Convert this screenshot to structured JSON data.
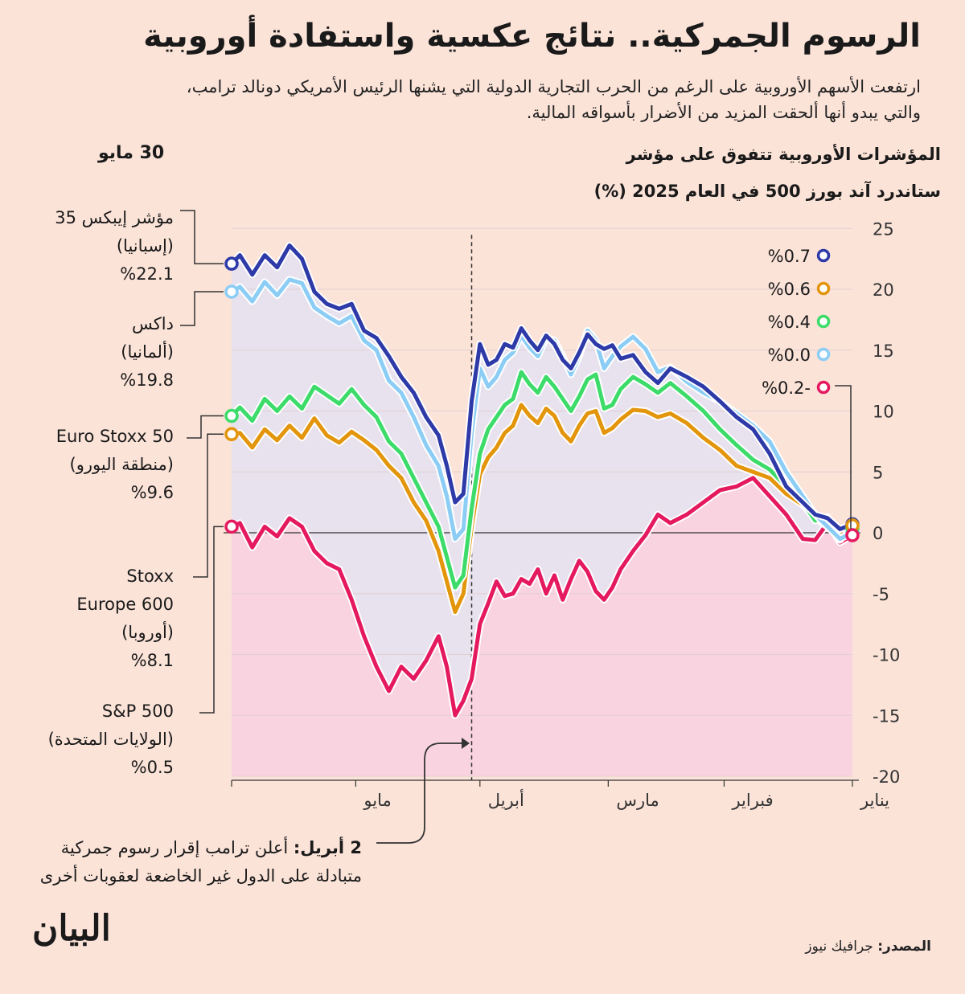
{
  "header": {
    "title": "الرسوم الجمركية.. نتائج عكسية واستفادة أوروبية",
    "subtitle_line1": "ارتفعت الأسهم الأوروبية على الرغم من الحرب التجارية الدولية التي يشنها الرئيس الأمريكي دونالد ترامب،",
    "subtitle_line2": "والتي يبدو أنها ألحقت المزيد من الأضرار بأسواقه المالية."
  },
  "chart_heading": {
    "line1": "المؤشرات الأوروبية تتفوق على مؤشر",
    "line2": "ستاندرد آند بورز 500 في العام 2025 (%)"
  },
  "end_date_label": "30 مايو",
  "annotation": {
    "date": "2 أبريل:",
    "text": "أعلن ترامب إقرار رسوم جمركية متبادلة على الدول غير الخاضعة لعقوبات أخرى"
  },
  "footer": {
    "source_label": "المصدر:",
    "source_value": "جرافيك نيوز",
    "logo": "البيان"
  },
  "chart_data": {
    "type": "line",
    "title": "المؤشرات الأوروبية تتفوق على مؤشر ستاندرد آند بورز 500 في العام 2025 (%)",
    "ylabel": "%",
    "ylim": [
      -20,
      25
    ],
    "y_ticks": [
      25,
      20,
      15,
      10,
      5,
      0,
      -5,
      -10,
      -15,
      -20
    ],
    "y_tick_labels": [
      "25",
      "20",
      "15",
      "10",
      "5",
      "0",
      "-5",
      "-10",
      "-15",
      "-20"
    ],
    "x_range_days": [
      0,
      150
    ],
    "x_ticks": [
      {
        "label": "يناير",
        "day": 0
      },
      {
        "label": "فبراير",
        "day": 31
      },
      {
        "label": "مارس",
        "day": 59
      },
      {
        "label": "أبريل",
        "day": 90
      },
      {
        "label": "مايو",
        "day": 120
      }
    ],
    "event_marker": {
      "day": 92,
      "label": "2 أبريل"
    },
    "start_labels": [
      {
        "text": "%0.7",
        "color": "#2e3aa8"
      },
      {
        "text": "%0.6",
        "color": "#e3950c"
      },
      {
        "text": "%0.4",
        "color": "#3ddc6a"
      },
      {
        "text": "%0.0",
        "color": "#8ccdf5"
      },
      {
        "text": "%0.2-",
        "color": "#e5195f"
      }
    ],
    "series": [
      {
        "name": "IBEX 35",
        "label_name": "مؤشر إيبكس 35",
        "label_region": "(إسبانيا)",
        "end_text": "%22.1",
        "color": "#2e3aa8",
        "x": [
          0,
          3,
          6,
          9,
          12,
          16,
          20,
          24,
          28,
          32,
          36,
          40,
          44,
          47,
          50,
          53,
          56,
          58,
          60,
          62,
          64,
          66,
          68,
          70,
          72,
          74,
          76,
          78,
          80,
          82,
          84,
          86,
          88,
          90,
          92,
          94,
          96,
          98,
          100,
          103,
          106,
          109,
          112,
          115,
          118,
          121,
          124,
          127,
          130,
          133,
          136,
          139,
          142,
          145,
          148,
          150
        ],
        "y": [
          0.7,
          0.3,
          1.2,
          1.5,
          2.5,
          3.8,
          6.5,
          8.5,
          9.5,
          10.8,
          12.0,
          12.8,
          13.5,
          12.3,
          13.2,
          14.6,
          14.3,
          15.4,
          15.1,
          15.5,
          16.3,
          14.8,
          13.5,
          14.2,
          15.5,
          16.2,
          15.0,
          15.8,
          16.8,
          15.2,
          15.5,
          14.2,
          13.8,
          15.5,
          10.8,
          3.2,
          2.5,
          5.5,
          8.0,
          9.5,
          11.5,
          12.8,
          14.5,
          16.0,
          16.6,
          18.8,
          18.4,
          18.8,
          19.8,
          22.5,
          23.6,
          21.8,
          22.8,
          21.2,
          22.8,
          22.1
        ]
      },
      {
        "name": "DAX",
        "label_name": "داكس",
        "label_region": "(ألمانيا)",
        "end_text": "%19.8",
        "color": "#8ccdf5",
        "x": [
          0,
          3,
          6,
          9,
          12,
          16,
          20,
          24,
          28,
          32,
          36,
          40,
          44,
          47,
          50,
          53,
          56,
          58,
          60,
          62,
          64,
          66,
          68,
          70,
          72,
          74,
          76,
          78,
          80,
          82,
          84,
          86,
          88,
          90,
          92,
          94,
          96,
          98,
          100,
          103,
          106,
          109,
          112,
          115,
          118,
          121,
          124,
          127,
          130,
          133,
          136,
          139,
          142,
          145,
          148,
          150
        ],
        "y": [
          0.0,
          -0.5,
          0.5,
          1.5,
          3.0,
          5.0,
          7.5,
          8.8,
          9.8,
          10.8,
          11.5,
          12.4,
          13.6,
          13.2,
          15.1,
          16.1,
          15.3,
          14.5,
          13.5,
          15.8,
          16.6,
          14.5,
          13.0,
          14.5,
          15.8,
          16.0,
          14.5,
          15.2,
          16.2,
          14.8,
          14.2,
          12.8,
          12.0,
          13.5,
          8.2,
          0.3,
          -0.5,
          3.0,
          5.5,
          7.2,
          9.5,
          11.5,
          12.5,
          15.0,
          15.8,
          17.8,
          17.2,
          17.8,
          18.5,
          20.5,
          20.8,
          19.5,
          20.6,
          19.0,
          20.2,
          19.8
        ]
      },
      {
        "name": "Euro Stoxx 50",
        "label_name": "Euro Stoxx 50",
        "label_region": "(منطقة اليورو)",
        "end_text": "%9.6",
        "color": "#3ddc6a",
        "x": [
          0,
          3,
          6,
          9,
          12,
          16,
          20,
          24,
          28,
          32,
          36,
          40,
          44,
          47,
          50,
          53,
          56,
          58,
          60,
          62,
          64,
          66,
          68,
          70,
          72,
          74,
          76,
          78,
          80,
          82,
          84,
          86,
          88,
          90,
          92,
          94,
          96,
          98,
          100,
          103,
          106,
          109,
          112,
          115,
          118,
          121,
          124,
          127,
          130,
          133,
          136,
          139,
          142,
          145,
          148,
          150
        ],
        "y": [
          0.4,
          -0.6,
          1.3,
          1.0,
          2.5,
          3.8,
          5.2,
          6.0,
          7.2,
          8.5,
          10.0,
          11.2,
          12.3,
          11.5,
          12.2,
          12.8,
          11.8,
          10.5,
          10.2,
          13.0,
          12.6,
          11.2,
          10.0,
          11.0,
          12.0,
          12.8,
          11.5,
          12.2,
          13.2,
          11.0,
          10.5,
          9.5,
          8.5,
          6.5,
          2.0,
          -3.5,
          -4.5,
          -2.0,
          0.5,
          2.5,
          4.5,
          6.5,
          7.5,
          9.5,
          10.5,
          11.8,
          10.6,
          11.3,
          12.0,
          10.2,
          11.2,
          10.0,
          11.0,
          9.2,
          10.3,
          9.6
        ]
      },
      {
        "name": "Stoxx Europe 600",
        "label_name": "Stoxx Europe 600",
        "label_region": "(أوروبا)",
        "end_text": "%8.1",
        "color": "#e3950c",
        "x": [
          0,
          3,
          6,
          9,
          12,
          16,
          20,
          24,
          28,
          32,
          36,
          40,
          44,
          47,
          50,
          53,
          56,
          58,
          60,
          62,
          64,
          66,
          68,
          70,
          72,
          74,
          76,
          78,
          80,
          82,
          84,
          86,
          88,
          90,
          92,
          94,
          96,
          98,
          100,
          103,
          106,
          109,
          112,
          115,
          118,
          121,
          124,
          127,
          130,
          133,
          136,
          139,
          142,
          145,
          148,
          150
        ],
        "y": [
          0.6,
          -0.3,
          0.5,
          1.2,
          2.3,
          3.2,
          4.5,
          5.0,
          5.5,
          6.8,
          7.8,
          9.0,
          9.8,
          9.5,
          10.0,
          10.1,
          9.3,
          8.6,
          8.2,
          10.0,
          9.8,
          8.8,
          7.5,
          8.2,
          9.6,
          10.2,
          9.0,
          9.6,
          10.5,
          8.8,
          8.2,
          7.0,
          6.2,
          4.8,
          0.5,
          -5.0,
          -6.5,
          -4.0,
          -1.5,
          1.0,
          2.5,
          4.5,
          5.5,
          6.8,
          7.6,
          8.3,
          7.4,
          8.0,
          9.4,
          7.8,
          8.8,
          7.6,
          8.5,
          7.0,
          8.2,
          8.1
        ]
      },
      {
        "name": "S&P 500",
        "label_name": "S&P 500",
        "label_region": "(الولايات المتحدة)",
        "end_text": "%0.5",
        "color": "#e5195f",
        "x": [
          0,
          3,
          6,
          9,
          12,
          16,
          20,
          24,
          28,
          32,
          36,
          40,
          44,
          47,
          50,
          53,
          56,
          58,
          60,
          62,
          64,
          66,
          68,
          70,
          72,
          74,
          76,
          78,
          80,
          82,
          84,
          86,
          88,
          90,
          92,
          94,
          96,
          98,
          100,
          103,
          106,
          109,
          112,
          115,
          118,
          121,
          124,
          127,
          130,
          133,
          136,
          139,
          142,
          145,
          148,
          150
        ],
        "y": [
          -0.2,
          -0.8,
          0.8,
          -0.6,
          -0.5,
          1.5,
          3.0,
          4.5,
          3.8,
          3.5,
          2.5,
          1.5,
          0.8,
          1.5,
          -0.2,
          -1.5,
          -3.0,
          -4.5,
          -5.5,
          -4.8,
          -3.2,
          -2.3,
          -3.8,
          -5.5,
          -3.5,
          -5.0,
          -3.0,
          -4.2,
          -3.8,
          -5.0,
          -5.2,
          -4.0,
          -5.8,
          -7.5,
          -12.0,
          -13.8,
          -15.0,
          -11.0,
          -8.5,
          -10.5,
          -12.0,
          -11.0,
          -13.0,
          -11.0,
          -8.5,
          -5.5,
          -3.0,
          -2.5,
          -1.5,
          0.5,
          1.2,
          -0.3,
          0.5,
          -1.2,
          0.8,
          0.5
        ]
      }
    ]
  }
}
